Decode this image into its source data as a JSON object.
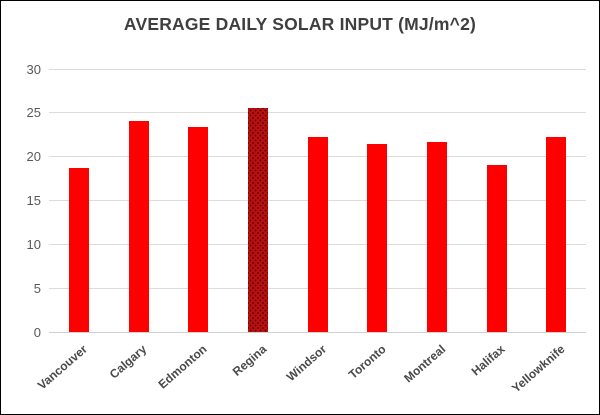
{
  "window": {
    "background": "#ffffff",
    "border_color": "#000000"
  },
  "chart_data": {
    "type": "bar",
    "title": "AVERAGE DAILY SOLAR INPUT (MJ/m^2)",
    "categories": [
      "Vancouver",
      "Calgary",
      "Edmonton",
      "Regina",
      "Windsor",
      "Toronto",
      "Montreal",
      "Halifax",
      "Yellowknife"
    ],
    "values": [
      18.7,
      24.1,
      23.4,
      25.6,
      22.3,
      21.4,
      21.7,
      19.1,
      22.2
    ],
    "xlabel": "",
    "ylabel": "",
    "ylim": [
      0,
      30
    ],
    "yticks": [
      0,
      5,
      10,
      15,
      20,
      25,
      30
    ],
    "grid": true,
    "legend": "none",
    "x_label_rotation_deg": -41,
    "highlight_index": 3,
    "highlight_category": "Regina",
    "colors": {
      "bar_default": "#fe0000",
      "bar_highlight_base": "#bc1010",
      "bar_highlight_dot": "#5a0000",
      "gridline": "#dcdcdc",
      "zero_line": "#d0d0d0",
      "title_text": "#3f3f3f",
      "y_tick_text": "#595959",
      "x_label_text": "#4a4a4a"
    }
  }
}
